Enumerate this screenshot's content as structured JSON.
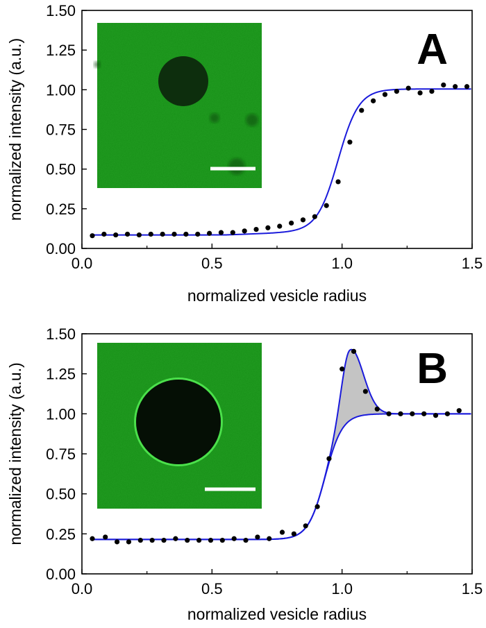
{
  "chart_data": [
    {
      "type": "scatter",
      "panel_label": "A",
      "xlabel": "normalized vesicle radius",
      "ylabel": "normalized intensity (a.u.)",
      "xlim": [
        0,
        1.5
      ],
      "ylim": [
        0,
        1.5
      ],
      "xticks": [
        "0.0",
        "0.5",
        "1.0",
        "1.5"
      ],
      "yticks": [
        "0.00",
        "0.25",
        "0.50",
        "0.75",
        "1.00",
        "1.25",
        "1.50"
      ],
      "series": [
        {
          "kind": "points",
          "color": "#000000",
          "x": [
            0.04,
            0.085,
            0.13,
            0.175,
            0.22,
            0.265,
            0.31,
            0.355,
            0.4,
            0.445,
            0.49,
            0.535,
            0.58,
            0.625,
            0.67,
            0.715,
            0.76,
            0.805,
            0.85,
            0.895,
            0.94,
            0.985,
            1.03,
            1.075,
            1.12,
            1.165,
            1.21,
            1.255,
            1.3,
            1.345,
            1.39,
            1.435,
            1.48
          ],
          "y": [
            0.08,
            0.09,
            0.085,
            0.09,
            0.085,
            0.09,
            0.09,
            0.09,
            0.09,
            0.09,
            0.095,
            0.1,
            0.1,
            0.11,
            0.12,
            0.13,
            0.14,
            0.16,
            0.18,
            0.2,
            0.27,
            0.42,
            0.67,
            0.87,
            0.93,
            0.97,
            0.99,
            1.01,
            0.98,
            0.99,
            1.03,
            1.02,
            1.02
          ]
        },
        {
          "kind": "fit",
          "color": "#1a1adb",
          "model": "sigmoid+linear",
          "baseline": 0.085,
          "plateau": 1.005,
          "midpoint": 0.985,
          "width": 0.04
        }
      ],
      "inset": {
        "background": "#239f23",
        "vesicle_color": "#0d2e0d",
        "vesicle_rim": false,
        "scale_bar_color": "#ffffff"
      }
    },
    {
      "type": "scatter",
      "panel_label": "B",
      "xlabel": "normalized vesicle radius",
      "ylabel": "normalized intensity (a.u.)",
      "xlim": [
        0,
        1.5
      ],
      "ylim": [
        0,
        1.5
      ],
      "xticks": [
        "0.0",
        "0.5",
        "1.0",
        "1.5"
      ],
      "yticks": [
        "0.00",
        "0.25",
        "0.50",
        "0.75",
        "1.00",
        "1.25",
        "1.50"
      ],
      "series": [
        {
          "kind": "points",
          "color": "#000000",
          "x": [
            0.04,
            0.09,
            0.135,
            0.18,
            0.225,
            0.27,
            0.315,
            0.36,
            0.405,
            0.45,
            0.495,
            0.54,
            0.585,
            0.63,
            0.675,
            0.72,
            0.77,
            0.815,
            0.86,
            0.905,
            0.95,
            1.0,
            1.045,
            1.09,
            1.135,
            1.18,
            1.225,
            1.27,
            1.315,
            1.36,
            1.405,
            1.45
          ],
          "y": [
            0.22,
            0.23,
            0.2,
            0.2,
            0.21,
            0.21,
            0.21,
            0.22,
            0.21,
            0.21,
            0.21,
            0.21,
            0.22,
            0.21,
            0.23,
            0.22,
            0.26,
            0.25,
            0.3,
            0.42,
            0.72,
            1.28,
            1.39,
            1.14,
            1.03,
            1.0,
            1.0,
            1.0,
            1.0,
            0.99,
            1.0,
            1.02
          ]
        },
        {
          "kind": "fit",
          "color": "#1a1adb",
          "model": "sigmoid",
          "baseline": 0.215,
          "plateau": 1.0,
          "midpoint": 0.935,
          "width": 0.033
        },
        {
          "kind": "peak",
          "color": "#1a1adb",
          "fill": "#c4c4c4",
          "center": 1.03,
          "amplitude": 0.44,
          "width_left": 0.032,
          "width_right": 0.05
        }
      ],
      "inset": {
        "background": "#239f23",
        "vesicle_color": "#050f05",
        "vesicle_rim": true,
        "scale_bar_color": "#ffffff"
      }
    }
  ]
}
